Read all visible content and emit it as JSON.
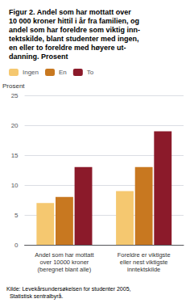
{
  "chart_data": {
    "type": "bar",
    "title": "Figur 2. Andel som har mottatt over\n10 000 kroner hittil i år fra familien, og\nandel som har foreldre som viktig inn-\ntektskilde, blant studenter med ingen,\nen eller to foreldre med høyere ut-\ndanning. Prosent",
    "ylabel": "Prosent",
    "annotations": [
      "Kilde: Levekårsundersøkelsen for studenter 2005,\n  Statistisk sentralbyrå."
    ],
    "categories": [
      "Andel som har mottatt\nover 10000 kroner\n(beregnet blant alle)",
      "Foreldre er viktigste\neller nest viktigste\ninntektskilde"
    ],
    "series": [
      {
        "name": "Ingen",
        "color": "#F5C870",
        "values": [
          7,
          9
        ]
      },
      {
        "name": "En",
        "color": "#C87820",
        "values": [
          8,
          13
        ]
      },
      {
        "name": "To",
        "color": "#8B1A2A",
        "values": [
          13,
          19
        ]
      }
    ],
    "ylim": [
      0,
      25
    ],
    "yticks": [
      0,
      5,
      10,
      15,
      20,
      25
    ],
    "grid": true,
    "legend": "upper left"
  }
}
